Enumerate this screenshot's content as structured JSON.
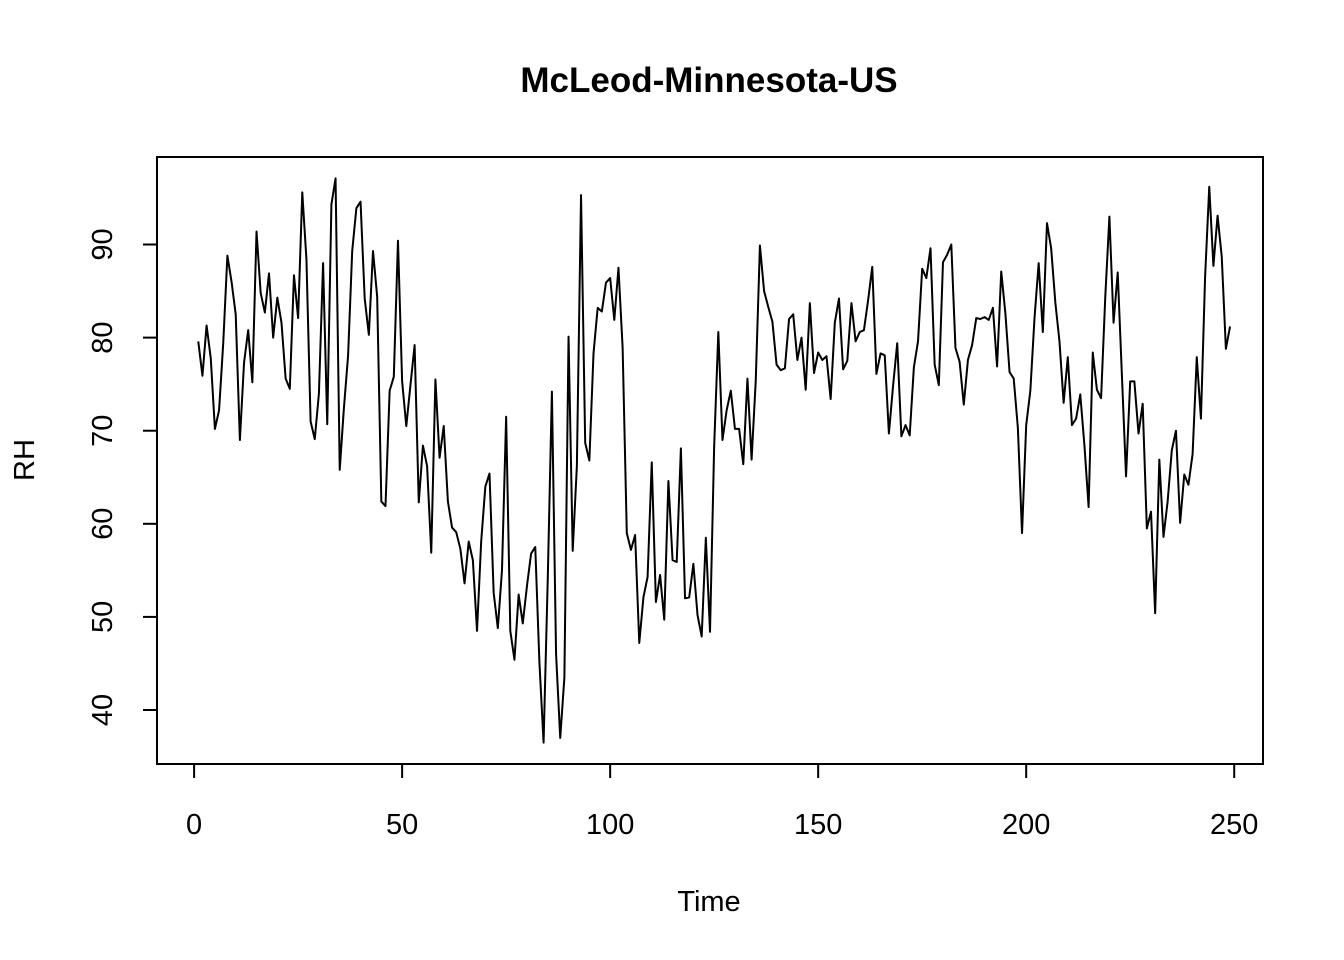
{
  "chart_data": {
    "type": "line",
    "title": "McLeod-Minnesota-US",
    "xlabel": "Time",
    "ylabel": "RH",
    "xlim": [
      -8.92,
      256.92
    ],
    "ylim": [
      34.2,
      99.4
    ],
    "x_ticks": [
      0,
      50,
      100,
      150,
      200,
      250
    ],
    "y_ticks": [
      40,
      50,
      60,
      70,
      80,
      90
    ],
    "grid": false,
    "series": [
      {
        "color": "#000000",
        "x_start": 1,
        "values": [
          79.6,
          75.9,
          81.3,
          77.8,
          70.2,
          72.2,
          79.4,
          88.8,
          86.0,
          82.5,
          69.0,
          77.3,
          80.8,
          75.2,
          91.4,
          84.8,
          82.7,
          86.9,
          80.0,
          84.3,
          81.6,
          75.6,
          74.5,
          86.7,
          82.1,
          95.6,
          88.4,
          71.0,
          69.1,
          74.0,
          88.0,
          70.7,
          94.3,
          97.1,
          65.8,
          72.4,
          78.0,
          89.3,
          93.9,
          94.6,
          84.2,
          80.3,
          89.3,
          84.4,
          62.4,
          61.9,
          74.3,
          75.8,
          90.4,
          75.3,
          70.5,
          74.9,
          79.2,
          62.3,
          68.4,
          66.2,
          56.9,
          75.5,
          67.1,
          70.5,
          62.4,
          59.6,
          59.1,
          57.3,
          53.6,
          58.1,
          56.1,
          48.5,
          58.1,
          64.0,
          65.4,
          52.6,
          48.8,
          55.0,
          71.5,
          48.5,
          45.4,
          52.4,
          49.3,
          53.3,
          56.8,
          57.5,
          45.1,
          36.5,
          54.0,
          74.2,
          46.0,
          37.0,
          43.5,
          80.1,
          57.1,
          66.2,
          95.3,
          68.7,
          66.8,
          78.3,
          83.2,
          82.8,
          85.9,
          86.4,
          81.9,
          87.5,
          78.9,
          59.0,
          57.2,
          58.8,
          47.2,
          52.1,
          54.3,
          66.6,
          51.6,
          54.5,
          49.7,
          64.6,
          56.1,
          55.9,
          68.1,
          52.0,
          52.1,
          55.7,
          50.2,
          47.9,
          58.5,
          48.4,
          68.3,
          80.6,
          69.0,
          72.2,
          74.3,
          70.2,
          70.2,
          66.4,
          75.6,
          66.9,
          75.4,
          89.9,
          85.0,
          83.3,
          81.7,
          77.1,
          76.5,
          76.7,
          82.0,
          82.5,
          77.6,
          80.0,
          74.4,
          83.7,
          76.2,
          78.4,
          77.6,
          78.0,
          73.4,
          81.6,
          84.2,
          76.6,
          77.5,
          83.7,
          79.6,
          80.6,
          80.8,
          84.0,
          87.6,
          76.1,
          78.3,
          78.1,
          69.7,
          74.8,
          79.4,
          69.4,
          70.6,
          69.5,
          76.8,
          79.6,
          87.4,
          86.4,
          89.6,
          77.1,
          74.9,
          88.1,
          88.9,
          90.0,
          78.9,
          77.4,
          72.8,
          77.6,
          79.2,
          82.1,
          82.0,
          82.2,
          81.9,
          83.2,
          76.9,
          87.1,
          82.6,
          76.3,
          75.6,
          70.3,
          59.0,
          70.6,
          74.3,
          82.1,
          88.0,
          80.6,
          92.3,
          89.6,
          83.8,
          79.6,
          73.0,
          77.9,
          70.6,
          71.3,
          73.9,
          68.4,
          61.8,
          78.4,
          74.4,
          73.5,
          84.3,
          93.0,
          81.6,
          87.0,
          76.0,
          65.1,
          75.3,
          75.3,
          69.7,
          72.9,
          59.5,
          61.3,
          50.4,
          66.9,
          58.6,
          62.4,
          67.9,
          70.0,
          60.1,
          65.3,
          64.2,
          67.5,
          77.9,
          71.3,
          86.5,
          96.2,
          87.7,
          93.1,
          88.7,
          78.8,
          81.2
        ]
      }
    ]
  }
}
